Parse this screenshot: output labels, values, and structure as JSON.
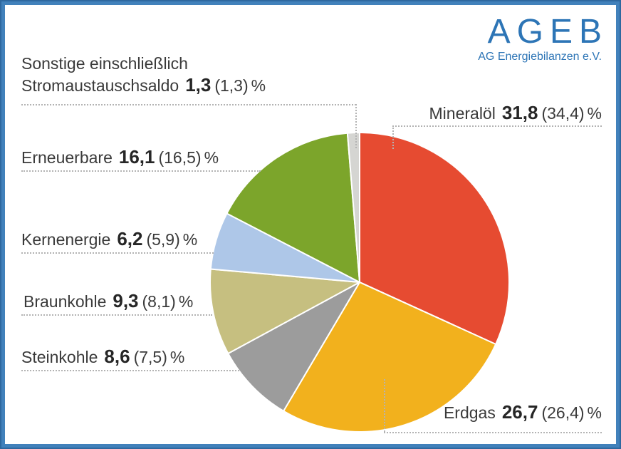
{
  "logo": {
    "title": "AGEB",
    "subtitle": "AG Energiebilanzen e.V.",
    "color": "#2d75b6"
  },
  "chart_data": {
    "type": "pie",
    "unit": "%",
    "legend_position": "outside-callout-labels",
    "slices": [
      {
        "id": "mineraloel",
        "label": "Mineralöl",
        "value": 31.8,
        "value_display": "31,8",
        "secondary_display": "(34,4)",
        "color": "#e64b31"
      },
      {
        "id": "erdgas",
        "label": "Erdgas",
        "value": 26.7,
        "value_display": "26,7",
        "secondary_display": "(26,4)",
        "color": "#f2b11d"
      },
      {
        "id": "steinkohle",
        "label": "Steinkohle",
        "value": 8.6,
        "value_display": "8,6",
        "secondary_display": "(7,5)",
        "color": "#9c9c9c"
      },
      {
        "id": "braunkohle",
        "label": "Braunkohle",
        "value": 9.3,
        "value_display": "9,3",
        "secondary_display": "(8,1)",
        "color": "#c6bf80"
      },
      {
        "id": "kernenergie",
        "label": "Kernenergie",
        "value": 6.2,
        "value_display": "6,2",
        "secondary_display": "(5,9)",
        "color": "#aec7e8"
      },
      {
        "id": "erneuerbare",
        "label": "Erneuerbare",
        "value": 16.1,
        "value_display": "16,1",
        "secondary_display": "(16,5)",
        "color": "#7ca52b"
      },
      {
        "id": "sonstige",
        "label_prefix": "Sonstige einschließlich",
        "label": "Stromaustauschsaldo",
        "value": 1.3,
        "value_display": "1,3",
        "secondary_display": "(1,3)",
        "color": "#d5d5d2"
      }
    ]
  }
}
